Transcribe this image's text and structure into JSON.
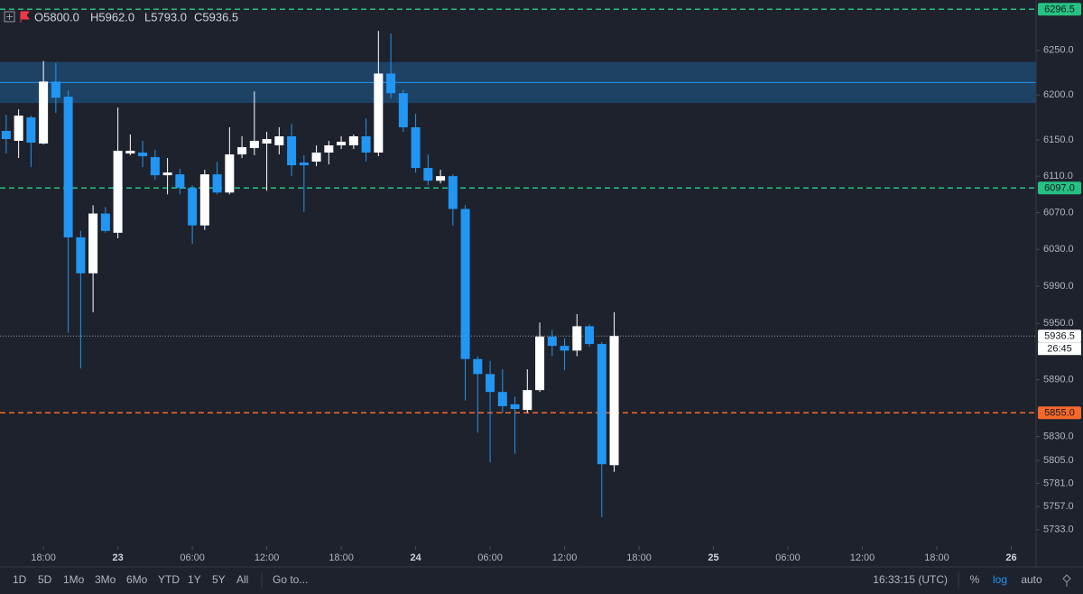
{
  "chart_data": {
    "type": "candlestick",
    "header": [
      "O5800.0",
      "H5962.0",
      "L5793.0",
      "C5936.5"
    ],
    "x": [
      15,
      16,
      17,
      18,
      19,
      20,
      21,
      22,
      23,
      24,
      25,
      26,
      27,
      28,
      29,
      30,
      31,
      32,
      33,
      34,
      35,
      36,
      37,
      38,
      39,
      40,
      41,
      42,
      43,
      44,
      45,
      46,
      47,
      48,
      49,
      50,
      51,
      52,
      53,
      54,
      55,
      56,
      57,
      58,
      59,
      60,
      61,
      62,
      63,
      64
    ],
    "open": [
      6160,
      6149,
      6175,
      6146,
      6215,
      6198,
      6043,
      6004,
      6069,
      6048,
      6135,
      6136,
      6131,
      6111,
      6112,
      6097,
      6056,
      6112,
      6092,
      6134,
      6141,
      6146,
      6144,
      6154,
      6125,
      6126,
      6136,
      6144,
      6144,
      6154,
      6136,
      6224,
      6202,
      6164,
      6119,
      6105,
      6110,
      6074,
      5912,
      5896,
      5877,
      5864,
      5858,
      5879,
      5936,
      5926,
      5921,
      5947,
      5928,
      5800
    ],
    "high": [
      6178,
      6184,
      6177,
      6238,
      6236,
      6205,
      6050,
      6078,
      6076,
      6186,
      6156,
      6149,
      6139,
      6130,
      6118,
      6100,
      6117,
      6126,
      6164,
      6154,
      6204,
      6159,
      6164,
      6168,
      6133,
      6144,
      6149,
      6154,
      6156,
      6174,
      6272,
      6269,
      6206,
      6179,
      6134,
      6117,
      6112,
      6078,
      5915,
      5910,
      5901,
      5872,
      5901,
      5951,
      5943,
      5934,
      5960,
      5949,
      5930,
      5962
    ],
    "low": [
      6135,
      6130,
      6120,
      6145,
      6180,
      5940,
      5902,
      5962,
      6048,
      6042,
      6133,
      6120,
      6106,
      6090,
      6090,
      6036,
      6051,
      6090,
      6090,
      6130,
      6133,
      6094,
      6134,
      6110,
      6071,
      6121,
      6123,
      6140,
      6140,
      6126,
      6132,
      6196,
      6159,
      6114,
      6100,
      6102,
      6056,
      5868,
      5834,
      5803,
      5855,
      5812,
      5855,
      5877,
      5915,
      5900,
      5915,
      5925,
      5746,
      5793
    ],
    "close": [
      6151,
      6177,
      6147,
      6215,
      6197,
      6043,
      6004,
      6069,
      6050,
      6138,
      6138,
      6132,
      6111,
      6114,
      6097,
      6056,
      6112,
      6092,
      6134,
      6142,
      6149,
      6151,
      6154,
      6122,
      6122,
      6136,
      6144,
      6148,
      6154,
      6136,
      6224,
      6202,
      6164,
      6119,
      6105,
      6110,
      6074,
      5912,
      5896,
      5877,
      5862,
      5859,
      5879,
      5936,
      5926,
      5921,
      5947,
      5928,
      5801,
      5936.5
    ],
    "up_color": "#ffffff",
    "down_color": "#2196f3",
    "xlim": [
      14.5,
      98
    ],
    "xticks": [
      {
        "value": 18,
        "label": "18:00"
      },
      {
        "value": 24,
        "label": "23"
      },
      {
        "value": 30,
        "label": "06:00"
      },
      {
        "value": 36,
        "label": "12:00"
      },
      {
        "value": 42,
        "label": "18:00"
      },
      {
        "value": 48,
        "label": "24"
      },
      {
        "value": 54,
        "label": "06:00"
      },
      {
        "value": 60,
        "label": "12:00"
      },
      {
        "value": 66,
        "label": "18:00"
      },
      {
        "value": 72,
        "label": "25"
      },
      {
        "value": 78,
        "label": "06:00"
      },
      {
        "value": 84,
        "label": "12:00"
      },
      {
        "value": 90,
        "label": "18:00"
      },
      {
        "value": 96,
        "label": "26"
      }
    ],
    "ylim": [
      5716,
      6307
    ],
    "log_scale": true,
    "yticks": [
      {
        "value": 6250,
        "label": "6250.0"
      },
      {
        "value": 6200,
        "label": "6200.0"
      },
      {
        "value": 6150,
        "label": "6150.0"
      },
      {
        "value": 6110,
        "label": "6110.0"
      },
      {
        "value": 6070,
        "label": "6070.0"
      },
      {
        "value": 6030,
        "label": "6030.0"
      },
      {
        "value": 5990,
        "label": "5990.0"
      },
      {
        "value": 5950,
        "label": "5950.0"
      },
      {
        "value": 5890,
        "label": "5890.0"
      },
      {
        "value": 5830,
        "label": "5830.0"
      },
      {
        "value": 5805,
        "label": "5805.0"
      },
      {
        "value": 5781,
        "label": "5781.0"
      },
      {
        "value": 5757,
        "label": "5757.0"
      },
      {
        "value": 5733,
        "label": "5733.0"
      }
    ],
    "zones": [
      {
        "from": 6191,
        "to": 6237,
        "line": 6214,
        "color": "#2196f3"
      }
    ],
    "price_lines": [
      {
        "value": 6296.5,
        "label": "6296.5",
        "color": "#26c281",
        "style": "dashed"
      },
      {
        "value": 6097,
        "label": "6097.0",
        "color": "#26c281",
        "style": "dashed"
      },
      {
        "value": 5855,
        "label": "5855.0",
        "color": "#f7682a",
        "style": "dashed"
      },
      {
        "value": 5936.5,
        "label": "5936.5",
        "color": "#9598a1",
        "style": "dotted"
      }
    ],
    "countdown": "26:45"
  },
  "toolbar": {
    "ranges": [
      "1D",
      "5D",
      "1Mo",
      "3Mo",
      "6Mo",
      "YTD",
      "1Y",
      "5Y",
      "All"
    ],
    "goto": "Go to...",
    "clock": "16:33:15 (UTC)",
    "options": [
      "%",
      "log",
      "auto"
    ]
  }
}
